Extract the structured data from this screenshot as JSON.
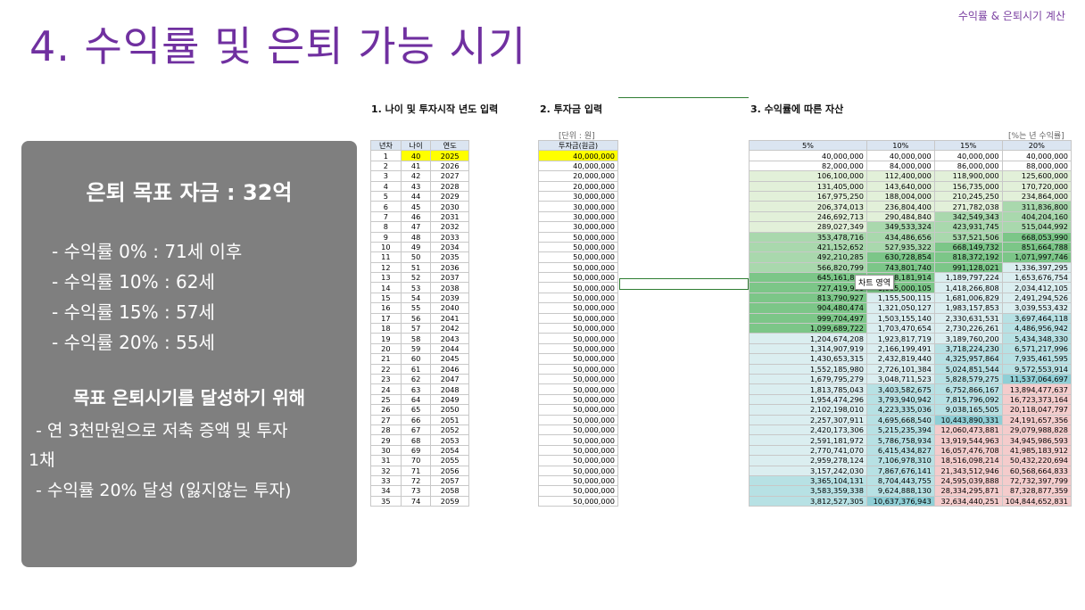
{
  "header": {
    "top_right": "수익률 & 은퇴시기 계산",
    "title": "4. 수익률 및 은퇴 가능 시기"
  },
  "panel": {
    "goal": "은퇴 목표 자금 : 32억",
    "rates": [
      "- 수익률    0% : 71세 이후",
      "- 수익률 10% : 62세",
      "- 수익률 15% : 57세",
      "- 수익률 20% : 55세"
    ],
    "subtitle": "목표 은퇴시기를 달성하기 위해",
    "lines": [
      "- 연 3천만원으로 저축 증액 및 투자",
      "1채",
      "- 수익률 20% 달성 (잃지않는 투자)"
    ]
  },
  "sections": {
    "s1": "1. 나이 및 투자시작 년도 입력",
    "s2": "2. 투자금 입력",
    "s3": "3. 수익률에 따른 자산",
    "unit_left": "[단위 : 원]",
    "unit_right": "[%는 년 수익률]"
  },
  "tooltip": "차트 영역",
  "table1": {
    "headers": [
      "년차",
      "나이",
      "연도"
    ],
    "rows": [
      [
        "1",
        "40",
        "2025"
      ],
      [
        "2",
        "41",
        "2026"
      ],
      [
        "3",
        "42",
        "2027"
      ],
      [
        "4",
        "43",
        "2028"
      ],
      [
        "5",
        "44",
        "2029"
      ],
      [
        "6",
        "45",
        "2030"
      ],
      [
        "7",
        "46",
        "2031"
      ],
      [
        "8",
        "47",
        "2032"
      ],
      [
        "9",
        "48",
        "2033"
      ],
      [
        "10",
        "49",
        "2034"
      ],
      [
        "11",
        "50",
        "2035"
      ],
      [
        "12",
        "51",
        "2036"
      ],
      [
        "13",
        "52",
        "2037"
      ],
      [
        "14",
        "53",
        "2038"
      ],
      [
        "15",
        "54",
        "2039"
      ],
      [
        "16",
        "55",
        "2040"
      ],
      [
        "17",
        "56",
        "2041"
      ],
      [
        "18",
        "57",
        "2042"
      ],
      [
        "19",
        "58",
        "2043"
      ],
      [
        "20",
        "59",
        "2044"
      ],
      [
        "21",
        "60",
        "2045"
      ],
      [
        "22",
        "61",
        "2046"
      ],
      [
        "23",
        "62",
        "2047"
      ],
      [
        "24",
        "63",
        "2048"
      ],
      [
        "25",
        "64",
        "2049"
      ],
      [
        "26",
        "65",
        "2050"
      ],
      [
        "27",
        "66",
        "2051"
      ],
      [
        "28",
        "67",
        "2052"
      ],
      [
        "29",
        "68",
        "2053"
      ],
      [
        "30",
        "69",
        "2054"
      ],
      [
        "31",
        "70",
        "2055"
      ],
      [
        "32",
        "71",
        "2056"
      ],
      [
        "33",
        "72",
        "2057"
      ],
      [
        "34",
        "73",
        "2058"
      ],
      [
        "35",
        "74",
        "2059"
      ]
    ]
  },
  "table2": {
    "header": "투자금(원금)",
    "rows": [
      "40,000,000",
      "40,000,000",
      "20,000,000",
      "20,000,000",
      "30,000,000",
      "30,000,000",
      "30,000,000",
      "30,000,000",
      "50,000,000",
      "50,000,000",
      "50,000,000",
      "50,000,000",
      "50,000,000",
      "50,000,000",
      "50,000,000",
      "50,000,000",
      "50,000,000",
      "50,000,000",
      "50,000,000",
      "50,000,000",
      "50,000,000",
      "50,000,000",
      "50,000,000",
      "50,000,000",
      "50,000,000",
      "50,000,000",
      "50,000,000",
      "50,000,000",
      "50,000,000",
      "50,000,000",
      "50,000,000",
      "50,000,000",
      "50,000,000",
      "50,000,000",
      "50,000,000"
    ]
  },
  "table3": {
    "headers": [
      "5%",
      "10%",
      "15%",
      "20%"
    ],
    "rows": [
      [
        "40,000,000",
        "40,000,000",
        "40,000,000",
        "40,000,000"
      ],
      [
        "82,000,000",
        "84,000,000",
        "86,000,000",
        "88,000,000"
      ],
      [
        "106,100,000",
        "112,400,000",
        "118,900,000",
        "125,600,000"
      ],
      [
        "131,405,000",
        "143,640,000",
        "156,735,000",
        "170,720,000"
      ],
      [
        "167,975,250",
        "188,004,000",
        "210,245,250",
        "234,864,000"
      ],
      [
        "206,374,013",
        "236,804,400",
        "271,782,038",
        "311,836,800"
      ],
      [
        "246,692,713",
        "290,484,840",
        "342,549,343",
        "404,204,160"
      ],
      [
        "289,027,349",
        "349,533,324",
        "423,931,745",
        "515,044,992"
      ],
      [
        "353,478,716",
        "434,486,656",
        "537,521,506",
        "668,053,990"
      ],
      [
        "421,152,652",
        "527,935,322",
        "668,149,732",
        "851,664,788"
      ],
      [
        "492,210,285",
        "630,728,854",
        "818,372,192",
        "1,071,997,746"
      ],
      [
        "566,820,799",
        "743,801,740",
        "991,128,021",
        "1,336,397,295"
      ],
      [
        "645,161,839",
        "868,181,914",
        "1,189,797,224",
        "1,653,676,754"
      ],
      [
        "727,419,931",
        "1,005,000,105",
        "1,418,266,808",
        "2,034,412,105"
      ],
      [
        "813,790,927",
        "1,155,500,115",
        "1,681,006,829",
        "2,491,294,526"
      ],
      [
        "904,480,474",
        "1,321,050,127",
        "1,983,157,853",
        "3,039,553,432"
      ],
      [
        "999,704,497",
        "1,503,155,140",
        "2,330,631,531",
        "3,697,464,118"
      ],
      [
        "1,099,689,722",
        "1,703,470,654",
        "2,730,226,261",
        "4,486,956,942"
      ],
      [
        "1,204,674,208",
        "1,923,817,719",
        "3,189,760,200",
        "5,434,348,330"
      ],
      [
        "1,314,907,919",
        "2,166,199,491",
        "3,718,224,230",
        "6,571,217,996"
      ],
      [
        "1,430,653,315",
        "2,432,819,440",
        "4,325,957,864",
        "7,935,461,595"
      ],
      [
        "1,552,185,980",
        "2,726,101,384",
        "5,024,851,544",
        "9,572,553,914"
      ],
      [
        "1,679,795,279",
        "3,048,711,523",
        "5,828,579,275",
        "11,537,064,697"
      ],
      [
        "1,813,785,043",
        "3,403,582,675",
        "6,752,866,167",
        "13,894,477,637"
      ],
      [
        "1,954,474,296",
        "3,793,940,942",
        "7,815,796,092",
        "16,723,373,164"
      ],
      [
        "2,102,198,010",
        "4,223,335,036",
        "9,038,165,505",
        "20,118,047,797"
      ],
      [
        "2,257,307,911",
        "4,695,668,540",
        "10,443,890,331",
        "24,191,657,356"
      ],
      [
        "2,420,173,306",
        "5,215,235,394",
        "12,060,473,881",
        "29,079,988,828"
      ],
      [
        "2,591,181,972",
        "5,786,758,934",
        "13,919,544,963",
        "34,945,986,593"
      ],
      [
        "2,770,741,070",
        "6,415,434,827",
        "16,057,476,708",
        "41,985,183,912"
      ],
      [
        "2,959,278,124",
        "7,106,978,310",
        "18,516,098,214",
        "50,432,220,694"
      ],
      [
        "3,157,242,030",
        "7,867,676,141",
        "21,343,512,946",
        "60,568,664,833"
      ],
      [
        "3,365,104,131",
        "8,704,443,755",
        "24,595,039,888",
        "72,732,397,799"
      ],
      [
        "3,583,359,338",
        "9,624,888,130",
        "28,334,295,871",
        "87,328,877,359"
      ],
      [
        "3,812,527,305",
        "10,637,376,943",
        "32,634,440,251",
        "104,844,652,831"
      ]
    ]
  },
  "colors": {
    "title": "#7030a0",
    "panel": "#7f7f7f",
    "green_light": "#e2f0d9",
    "green_mid": "#a9d8ad",
    "green_dark": "#7cc688",
    "teal": "#b7e1e4",
    "teal_dark": "#8fcfd6",
    "pink": "#f4cccc",
    "highlight": "#ffff00"
  }
}
